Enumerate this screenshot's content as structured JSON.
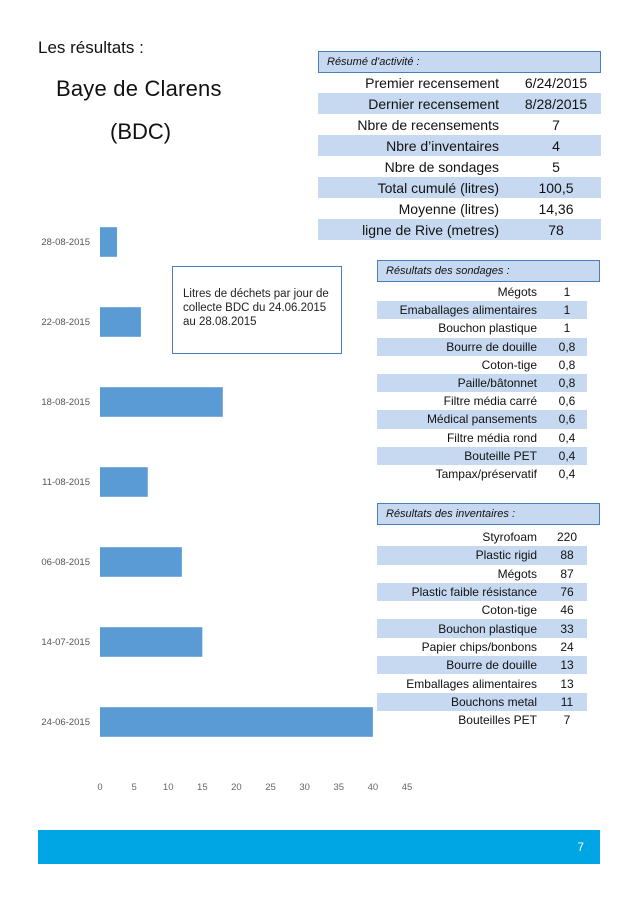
{
  "heading": {
    "section": "Les résultats :",
    "site_name": "Baye de Clarens",
    "site_code": "(BDC)"
  },
  "chart_note": "Litres de déchets par jour de collecte BDC du 24.06.2015 au 28.08.2015",
  "chart_data": {
    "type": "bar",
    "orientation": "horizontal",
    "categories": [
      "28-08-2015",
      "22-08-2015",
      "18-08-2015",
      "11-08-2015",
      "06-08-2015",
      "14-07-2015",
      "24-06-2015"
    ],
    "values": [
      2.5,
      6,
      18,
      7,
      12,
      15,
      40
    ],
    "title": "",
    "xlabel": "",
    "ylabel": "",
    "xlim": [
      0,
      45
    ],
    "xticks": [
      0,
      5,
      10,
      15,
      20,
      25,
      30,
      35,
      40,
      45
    ],
    "grid": false,
    "bar_color": "#5b9bd5"
  },
  "summary": {
    "title": "Résumé d'activité :",
    "rows": [
      {
        "label": "Premier recensement",
        "value": "6/24/2015"
      },
      {
        "label": "Dernier recensement",
        "value": "8/28/2015"
      },
      {
        "label": "Nbre de recensements",
        "value": "7"
      },
      {
        "label": "Nbre d’inventaires",
        "value": "4"
      },
      {
        "label": "Nbre de sondages",
        "value": "5"
      },
      {
        "label": "Total cumulé (litres)",
        "value": "100,5"
      },
      {
        "label": "Moyenne (litres)",
        "value": "14,36"
      },
      {
        "label": "ligne de Rive (metres)",
        "value": "78"
      }
    ]
  },
  "sondages": {
    "title": "Résultats des sondages :",
    "rows": [
      {
        "label": "Mégots",
        "value": "1"
      },
      {
        "label": "Emaballages alimentaires",
        "value": "1"
      },
      {
        "label": "Bouchon plastique",
        "value": "1"
      },
      {
        "label": "Bourre de douille",
        "value": "0,8"
      },
      {
        "label": "Coton-tige",
        "value": "0,8"
      },
      {
        "label": "Paille/bâtonnet",
        "value": "0,8"
      },
      {
        "label": "Filtre média carré",
        "value": "0,6"
      },
      {
        "label": "Médical pansements",
        "value": "0,6"
      },
      {
        "label": "Filtre média rond",
        "value": "0,4"
      },
      {
        "label": "Bouteille PET",
        "value": "0,4"
      },
      {
        "label": "Tampax/préservatif",
        "value": "0,4"
      }
    ]
  },
  "inventaires": {
    "title": "Résultats des inventaires :",
    "rows": [
      {
        "label": "Styrofoam",
        "value": "220"
      },
      {
        "label": "Plastic rigid",
        "value": "88"
      },
      {
        "label": "Mégots",
        "value": "87"
      },
      {
        "label": "Plastic faible résistance",
        "value": "76"
      },
      {
        "label": "Coton-tige",
        "value": "46"
      },
      {
        "label": "Bouchon plastique",
        "value": "33"
      },
      {
        "label": "Papier chips/bonbons",
        "value": "24"
      },
      {
        "label": "Bourre de douille",
        "value": "13"
      },
      {
        "label": "Emballages alimentaires",
        "value": "13"
      },
      {
        "label": "Bouchons metal",
        "value": "11"
      },
      {
        "label": "Bouteilles PET",
        "value": "7"
      }
    ]
  },
  "footer": {
    "page_number": "7",
    "bar_color": "#00a6e4"
  }
}
